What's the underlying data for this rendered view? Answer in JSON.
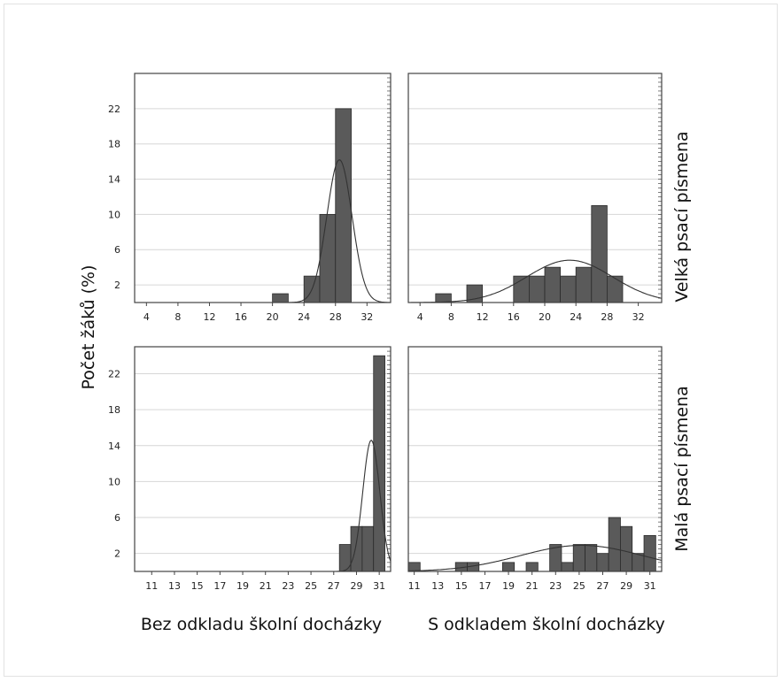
{
  "figure": {
    "y_axis_title": "Počet žáků (%)",
    "row_labels": [
      "Velká psací písmena",
      "Malá psací písmena"
    ],
    "col_labels": [
      "Bez odkladu školní docházky",
      "S odkladem školní docházky"
    ]
  },
  "colors": {
    "bar": "#5a5a5a",
    "frame": "#444444",
    "grid": "#d6d6d6",
    "curve": "#333333"
  },
  "chart_data": [
    {
      "type": "bar",
      "title": "",
      "xlabel": "Bez odkladu školní docházky",
      "ylabel": "Počet žáků (%)",
      "xlim": [
        2.5,
        35
      ],
      "ylim": [
        0,
        26
      ],
      "xticks": [
        4,
        8,
        12,
        16,
        20,
        24,
        28,
        32
      ],
      "yticks": [
        2,
        6,
        10,
        14,
        18,
        22
      ],
      "grid": true,
      "bin_width": 2,
      "bins": [
        {
          "x": 21,
          "value": 1
        },
        {
          "x": 25,
          "value": 3
        },
        {
          "x": 27,
          "value": 10
        },
        {
          "x": 29,
          "value": 22
        }
      ],
      "curve": {
        "type": "normal",
        "mean": 28.5,
        "sd": 1.6,
        "peak": 16.2
      }
    },
    {
      "type": "bar",
      "title": "",
      "xlabel": "S odkladem školní docházky",
      "ylabel": "Počet žáků (%)",
      "xlim": [
        2.5,
        35
      ],
      "ylim": [
        0,
        26
      ],
      "xticks": [
        4,
        8,
        12,
        16,
        20,
        24,
        28,
        32
      ],
      "yticks": [
        2,
        6,
        10,
        14,
        18,
        22
      ],
      "grid": true,
      "bin_width": 2,
      "bins": [
        {
          "x": 7,
          "value": 1
        },
        {
          "x": 11,
          "value": 2
        },
        {
          "x": 17,
          "value": 3
        },
        {
          "x": 19,
          "value": 3
        },
        {
          "x": 21,
          "value": 4
        },
        {
          "x": 23,
          "value": 3
        },
        {
          "x": 25,
          "value": 4
        },
        {
          "x": 27,
          "value": 11
        },
        {
          "x": 29,
          "value": 3
        }
      ],
      "curve": {
        "type": "normal",
        "mean": 23.2,
        "sd": 5.5,
        "peak": 4.8
      }
    },
    {
      "type": "bar",
      "title": "",
      "xlabel": "Bez odkladu školní docházky",
      "ylabel": "Počet žáků (%)",
      "xlim": [
        9.5,
        32
      ],
      "ylim": [
        0,
        25
      ],
      "xticks": [
        11,
        13,
        15,
        17,
        19,
        21,
        23,
        25,
        27,
        29,
        31
      ],
      "yticks": [
        2,
        6,
        10,
        14,
        18,
        22
      ],
      "grid": true,
      "bin_width": 1,
      "bins": [
        {
          "x": 28,
          "value": 3
        },
        {
          "x": 29,
          "value": 5
        },
        {
          "x": 30,
          "value": 5
        },
        {
          "x": 31,
          "value": 24
        }
      ],
      "curve": {
        "type": "normal",
        "mean": 30.3,
        "sd": 0.75,
        "peak": 14.6
      }
    },
    {
      "type": "bar",
      "title": "",
      "xlabel": "S odkladem školní docházky",
      "ylabel": "Počet žáků (%)",
      "xlim": [
        10.5,
        32
      ],
      "ylim": [
        0,
        25
      ],
      "xticks": [
        11,
        13,
        15,
        17,
        19,
        21,
        23,
        25,
        27,
        29,
        31
      ],
      "yticks": [
        2,
        6,
        10,
        14,
        18,
        22
      ],
      "grid": true,
      "bin_width": 1,
      "bins": [
        {
          "x": 11,
          "value": 1
        },
        {
          "x": 15,
          "value": 1
        },
        {
          "x": 16,
          "value": 1
        },
        {
          "x": 19,
          "value": 1
        },
        {
          "x": 21,
          "value": 1
        },
        {
          "x": 23,
          "value": 3
        },
        {
          "x": 24,
          "value": 1
        },
        {
          "x": 25,
          "value": 3
        },
        {
          "x": 26,
          "value": 3
        },
        {
          "x": 27,
          "value": 2
        },
        {
          "x": 28,
          "value": 6
        },
        {
          "x": 29,
          "value": 5
        },
        {
          "x": 30,
          "value": 2
        },
        {
          "x": 31,
          "value": 4
        }
      ],
      "curve": {
        "type": "normal",
        "mean": 25.2,
        "sd": 5.2,
        "peak": 2.9
      }
    }
  ]
}
